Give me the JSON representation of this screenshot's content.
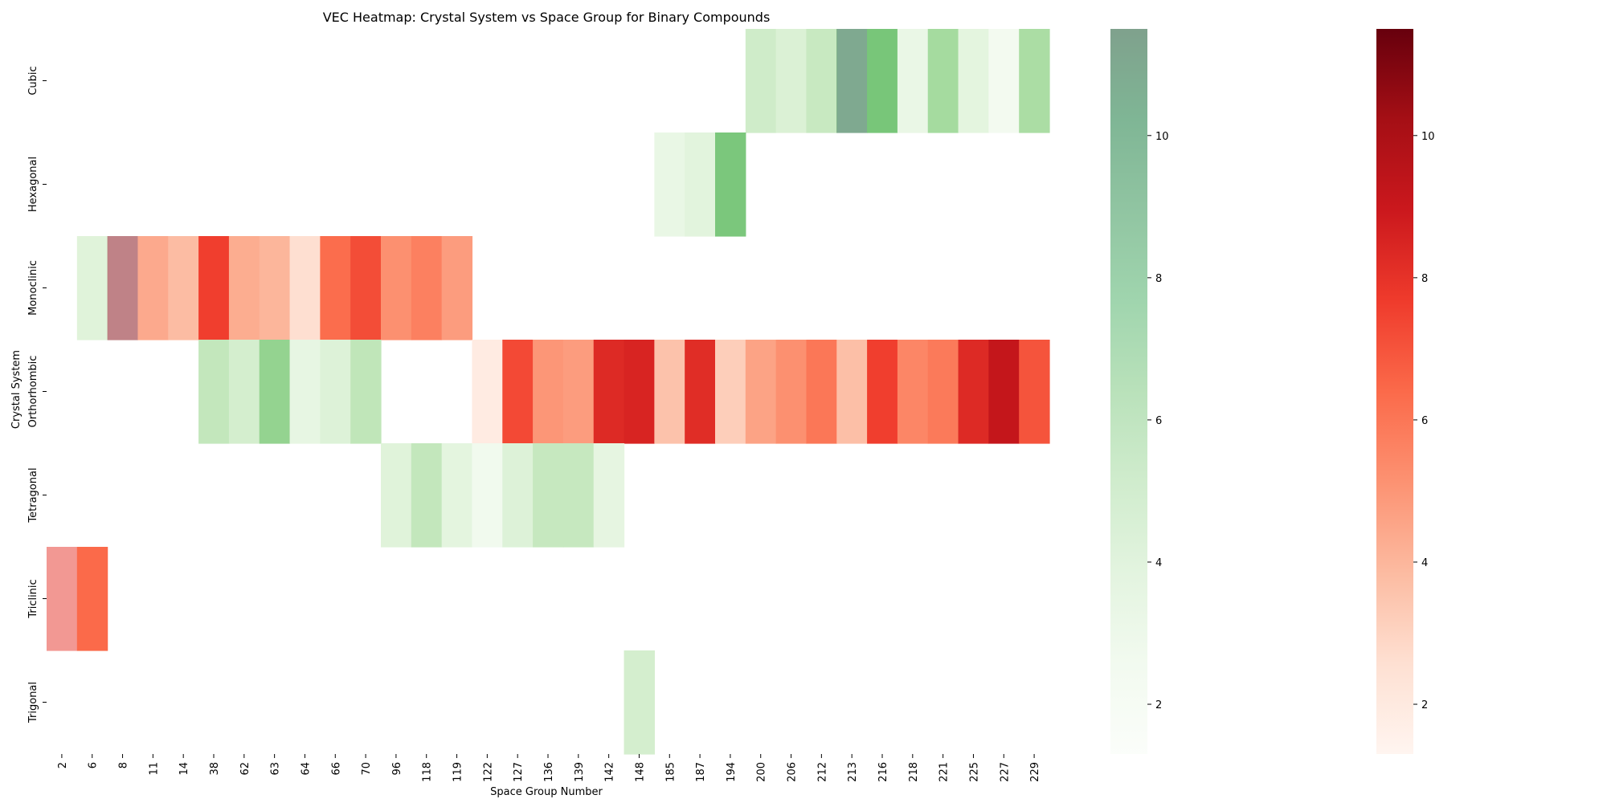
{
  "chart_data": {
    "type": "heatmap",
    "title": "VEC Heatmap: Crystal System vs Space Group for Binary Compounds",
    "xlabel": "Space Group Number",
    "ylabel": "Crystal System",
    "x_categories": [
      "2",
      "6",
      "8",
      "11",
      "14",
      "38",
      "62",
      "63",
      "64",
      "66",
      "70",
      "96",
      "118",
      "119",
      "122",
      "127",
      "136",
      "139",
      "142",
      "148",
      "185",
      "187",
      "194",
      "200",
      "206",
      "212",
      "213",
      "216",
      "218",
      "221",
      "225",
      "227",
      "229"
    ],
    "y_categories": [
      "Cubic",
      "Hexagonal",
      "Monoclinic",
      "Orthorhombic",
      "Tetragonal",
      "Triclinic",
      "Trigonal"
    ],
    "value_range": [
      1.3,
      11.5
    ],
    "colorbars": [
      {
        "name": "green",
        "colormap": "Greens",
        "low_color": "#f7fcf5",
        "high_color": "#00441b",
        "ticks": [
          2,
          4,
          6,
          8,
          10
        ]
      },
      {
        "name": "red",
        "colormap": "Reds",
        "low_color": "#fff5f0",
        "high_color": "#67000d",
        "ticks": [
          2,
          4,
          6,
          8,
          10
        ]
      }
    ],
    "cells": [
      {
        "row": "Cubic",
        "x": "200",
        "value": 3.5,
        "cmap": "green"
      },
      {
        "row": "Cubic",
        "x": "206",
        "value": 3.0,
        "cmap": "green"
      },
      {
        "row": "Cubic",
        "x": "212",
        "value": 3.8,
        "cmap": "green"
      },
      {
        "row": "Cubic",
        "x": "213",
        "value": 11.0,
        "cmap": "green",
        "alpha": 0.5
      },
      {
        "row": "Cubic",
        "x": "216",
        "value": 6.3,
        "cmap": "green"
      },
      {
        "row": "Cubic",
        "x": "218",
        "value": 2.2,
        "cmap": "green"
      },
      {
        "row": "Cubic",
        "x": "221",
        "value": 5.0,
        "cmap": "green"
      },
      {
        "row": "Cubic",
        "x": "225",
        "value": 2.6,
        "cmap": "green"
      },
      {
        "row": "Cubic",
        "x": "227",
        "value": 1.6,
        "cmap": "green"
      },
      {
        "row": "Cubic",
        "x": "229",
        "value": 4.8,
        "cmap": "green"
      },
      {
        "row": "Hexagonal",
        "x": "185",
        "value": 2.3,
        "cmap": "green"
      },
      {
        "row": "Hexagonal",
        "x": "187",
        "value": 2.7,
        "cmap": "green"
      },
      {
        "row": "Hexagonal",
        "x": "194",
        "value": 6.2,
        "cmap": "green"
      },
      {
        "row": "Monoclinic",
        "x": "6",
        "value": 2.8,
        "cmap": "green"
      },
      {
        "row": "Monoclinic",
        "x": "8",
        "value": 11.0,
        "cmap": "red",
        "alpha": 0.5
      },
      {
        "row": "Monoclinic",
        "x": "11",
        "value": 4.4,
        "cmap": "red"
      },
      {
        "row": "Monoclinic",
        "x": "14",
        "value": 3.8,
        "cmap": "red"
      },
      {
        "row": "Monoclinic",
        "x": "38",
        "value": 7.6,
        "cmap": "red"
      },
      {
        "row": "Monoclinic",
        "x": "62",
        "value": 4.3,
        "cmap": "red"
      },
      {
        "row": "Monoclinic",
        "x": "63",
        "value": 4.0,
        "cmap": "red"
      },
      {
        "row": "Monoclinic",
        "x": "64",
        "value": 2.6,
        "cmap": "red"
      },
      {
        "row": "Monoclinic",
        "x": "66",
        "value": 6.3,
        "cmap": "red"
      },
      {
        "row": "Monoclinic",
        "x": "70",
        "value": 7.2,
        "cmap": "red"
      },
      {
        "row": "Monoclinic",
        "x": "96",
        "value": 5.2,
        "cmap": "red"
      },
      {
        "row": "Monoclinic",
        "x": "118",
        "value": 5.7,
        "cmap": "red"
      },
      {
        "row": "Monoclinic",
        "x": "119",
        "value": 4.8,
        "cmap": "red"
      },
      {
        "row": "Orthorhombic",
        "x": "38",
        "value": 4.0,
        "cmap": "green"
      },
      {
        "row": "Orthorhombic",
        "x": "62",
        "value": 3.3,
        "cmap": "green"
      },
      {
        "row": "Orthorhombic",
        "x": "63",
        "value": 5.5,
        "cmap": "green"
      },
      {
        "row": "Orthorhombic",
        "x": "64",
        "value": 2.4,
        "cmap": "green"
      },
      {
        "row": "Orthorhombic",
        "x": "66",
        "value": 2.9,
        "cmap": "green"
      },
      {
        "row": "Orthorhombic",
        "x": "70",
        "value": 4.1,
        "cmap": "green"
      },
      {
        "row": "Orthorhombic",
        "x": "122",
        "value": 1.9,
        "cmap": "red"
      },
      {
        "row": "Orthorhombic",
        "x": "127",
        "value": 7.3,
        "cmap": "red"
      },
      {
        "row": "Orthorhombic",
        "x": "136",
        "value": 5.0,
        "cmap": "red"
      },
      {
        "row": "Orthorhombic",
        "x": "139",
        "value": 4.8,
        "cmap": "red"
      },
      {
        "row": "Orthorhombic",
        "x": "142",
        "value": 8.3,
        "cmap": "red"
      },
      {
        "row": "Orthorhombic",
        "x": "148",
        "value": 8.5,
        "cmap": "red"
      },
      {
        "row": "Orthorhombic",
        "x": "185",
        "value": 3.6,
        "cmap": "red"
      },
      {
        "row": "Orthorhombic",
        "x": "187",
        "value": 8.2,
        "cmap": "red"
      },
      {
        "row": "Orthorhombic",
        "x": "194",
        "value": 3.2,
        "cmap": "red"
      },
      {
        "row": "Orthorhombic",
        "x": "200",
        "value": 4.6,
        "cmap": "red"
      },
      {
        "row": "Orthorhombic",
        "x": "206",
        "value": 5.2,
        "cmap": "red"
      },
      {
        "row": "Orthorhombic",
        "x": "212",
        "value": 6.0,
        "cmap": "red"
      },
      {
        "row": "Orthorhombic",
        "x": "213",
        "value": 3.7,
        "cmap": "red"
      },
      {
        "row": "Orthorhombic",
        "x": "216",
        "value": 7.6,
        "cmap": "red"
      },
      {
        "row": "Orthorhombic",
        "x": "218",
        "value": 5.5,
        "cmap": "red"
      },
      {
        "row": "Orthorhombic",
        "x": "221",
        "value": 5.9,
        "cmap": "red"
      },
      {
        "row": "Orthorhombic",
        "x": "225",
        "value": 8.3,
        "cmap": "red"
      },
      {
        "row": "Orthorhombic",
        "x": "227",
        "value": 9.2,
        "cmap": "red"
      },
      {
        "row": "Orthorhombic",
        "x": "229",
        "value": 7.0,
        "cmap": "red"
      },
      {
        "row": "Tetragonal",
        "x": "96",
        "value": 2.8,
        "cmap": "green"
      },
      {
        "row": "Tetragonal",
        "x": "118",
        "value": 4.0,
        "cmap": "green"
      },
      {
        "row": "Tetragonal",
        "x": "119",
        "value": 2.6,
        "cmap": "green"
      },
      {
        "row": "Tetragonal",
        "x": "122",
        "value": 1.7,
        "cmap": "green"
      },
      {
        "row": "Tetragonal",
        "x": "127",
        "value": 2.9,
        "cmap": "green"
      },
      {
        "row": "Tetragonal",
        "x": "136",
        "value": 3.9,
        "cmap": "green"
      },
      {
        "row": "Tetragonal",
        "x": "139",
        "value": 3.9,
        "cmap": "green"
      },
      {
        "row": "Tetragonal",
        "x": "142",
        "value": 2.5,
        "cmap": "green"
      },
      {
        "row": "Triclinic",
        "x": "2",
        "value": 8.0,
        "cmap": "red",
        "alpha": 0.5
      },
      {
        "row": "Triclinic",
        "x": "6",
        "value": 6.4,
        "cmap": "red"
      },
      {
        "row": "Trigonal",
        "x": "148",
        "value": 3.3,
        "cmap": "green"
      }
    ]
  }
}
